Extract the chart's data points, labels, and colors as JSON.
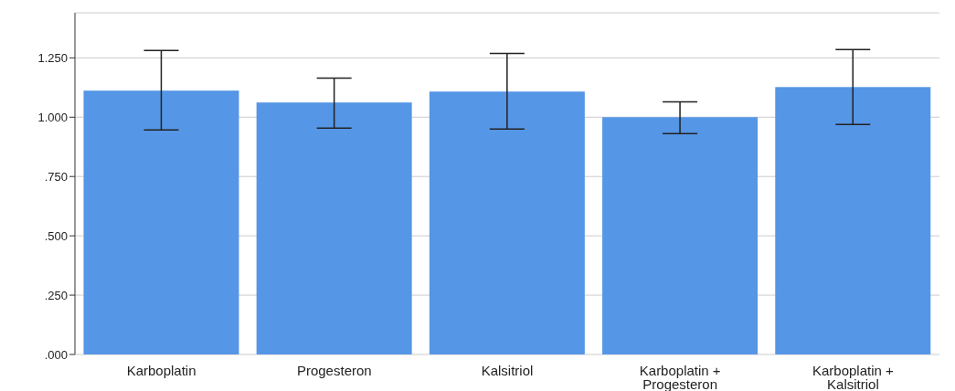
{
  "chart_data": {
    "type": "bar",
    "categories": [
      "Karboplatin",
      "Progesteron",
      "Kalsitriol",
      "Karboplatin + Progesteron",
      "Karboplatin + Kalsitriol"
    ],
    "values": [
      1.112,
      1.062,
      1.108,
      1.0,
      1.127
    ],
    "errors": [
      [
        0.946,
        1.281
      ],
      [
        0.954,
        1.165
      ],
      [
        0.95,
        1.269
      ],
      [
        0.931,
        1.065
      ],
      [
        0.969,
        1.285
      ]
    ],
    "color": "#5596e6",
    "ylim": [
      0,
      1.44
    ],
    "yticks": [
      {
        "value": 0,
        "label": ".000"
      },
      {
        "value": 0.25,
        "label": ".250"
      },
      {
        "value": 0.5,
        "label": ".500"
      },
      {
        "value": 0.75,
        "label": ".750"
      },
      {
        "value": 1,
        "label": "1.000"
      },
      {
        "value": 1.25,
        "label": "1.250"
      }
    ],
    "grid": "y"
  }
}
